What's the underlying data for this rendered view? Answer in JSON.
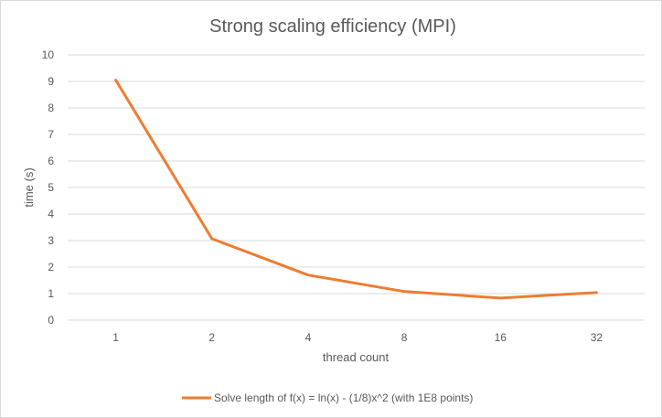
{
  "chart_data": {
    "type": "line",
    "title": "Strong scaling efficiency (MPI)",
    "xlabel": "thread count",
    "ylabel": "time (s)",
    "categories": [
      "1",
      "2",
      "4",
      "8",
      "16",
      "32"
    ],
    "series": [
      {
        "name": "Solve length of f(x) = ln(x) - (1/8)x^2 (with 1E8 points)",
        "values": [
          9.05,
          3.07,
          1.7,
          1.08,
          0.83,
          1.04
        ],
        "color": "#ed7d31"
      }
    ],
    "ylim": [
      0,
      10
    ],
    "yticks": [
      "0",
      "1",
      "2",
      "3",
      "4",
      "5",
      "6",
      "7",
      "8",
      "9",
      "10"
    ],
    "grid": true,
    "legend_position": "bottom"
  }
}
